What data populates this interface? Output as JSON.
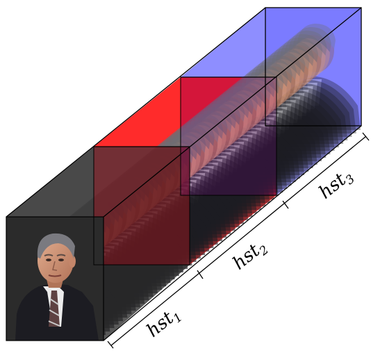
{
  "diagram": {
    "segments": [
      {
        "id": "hst1",
        "label_main": "hst",
        "label_sub": "1",
        "color": "#2b2b2b"
      },
      {
        "id": "hst2",
        "label_main": "hst",
        "label_sub": "2",
        "color": "#ff1a1a"
      },
      {
        "id": "hst3",
        "label_main": "hst",
        "label_sub": "3",
        "color": "#5a5aff"
      }
    ],
    "colors": {
      "skin": "#d79a7a",
      "skin_shadow": "#8c5a48",
      "hair": "#6e6e74",
      "suit": "#1c1c22",
      "shirt": "#eeeeee",
      "tie": "#6b4a4a",
      "edge": "#000000"
    },
    "content": "video-frame-stack-face"
  }
}
